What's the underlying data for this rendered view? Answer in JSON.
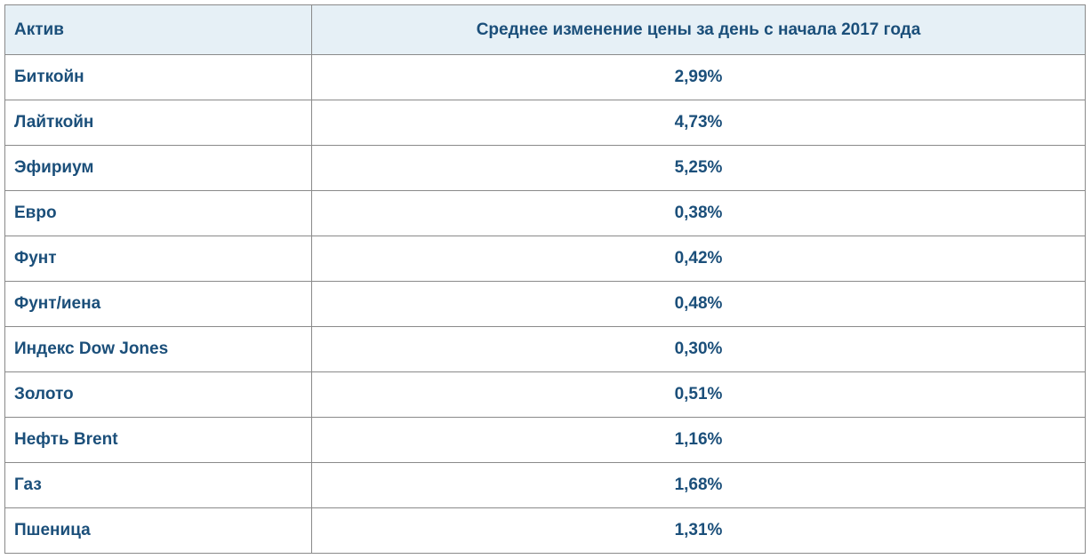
{
  "table": {
    "header": [
      "Актив",
      "Среднее изменение цены за день с начала 2017 года"
    ],
    "rows": [
      [
        "Биткойн",
        "2,99%"
      ],
      [
        "Лайткойн",
        "4,73%"
      ],
      [
        "Эфириум",
        "5,25%"
      ],
      [
        "Евро",
        "0,38%"
      ],
      [
        "Фунт",
        "0,42%"
      ],
      [
        "Фунт/иена",
        "0,48%"
      ],
      [
        "Индекс Dow Jones",
        "0,30%"
      ],
      [
        "Золото",
        "0,51%"
      ],
      [
        "Нефть Brent",
        "1,16%"
      ],
      [
        "Газ",
        "1,68%"
      ],
      [
        "Пшеница",
        "1,31%"
      ]
    ]
  }
}
